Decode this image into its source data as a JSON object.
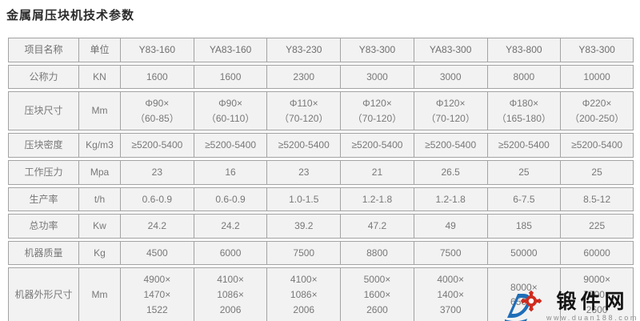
{
  "page": {
    "title": "金属屑压块机技术参数"
  },
  "table": {
    "headers": [
      "项目名称",
      "单位",
      "Y83-160",
      "YA83-160",
      "Y83-230",
      "Y83-300",
      "YA83-300",
      "Y83-800",
      "Y83-300"
    ],
    "rows": [
      {
        "label": "公称力",
        "unit": "KN",
        "values": [
          "1600",
          "1600",
          "2300",
          "3000",
          "3000",
          "8000",
          "10000"
        ]
      },
      {
        "label": "压块尺寸",
        "unit": "Mm",
        "values": [
          "Φ90×\n（60-85）",
          "Φ90×\n（60-110）",
          "Φ110×\n（70-120）",
          "Φ120×\n（70-120）",
          "Φ120×\n（70-120）",
          "Φ180×\n（165-180）",
          "Φ220×\n（200-250）"
        ]
      },
      {
        "label": "压块密度",
        "unit": "Kg/m3",
        "values": [
          "≥5200-5400",
          "≥5200-5400",
          "≥5200-5400",
          "≥5200-5400",
          "≥5200-5400",
          "≥5200-5400",
          "≥5200-5400"
        ]
      },
      {
        "label": "工作压力",
        "unit": "Mpa",
        "values": [
          "23",
          "16",
          "23",
          "21",
          "26.5",
          "25",
          "25"
        ]
      },
      {
        "label": "生产率",
        "unit": "t/h",
        "values": [
          "0.6-0.9",
          "0.6-0.9",
          "1.0-1.5",
          "1.2-1.8",
          "1.2-1.8",
          "6-7.5",
          "8.5-12"
        ]
      },
      {
        "label": "总功率",
        "unit": "Kw",
        "values": [
          "24.2",
          "24.2",
          "39.2",
          "47.2",
          "49",
          "185",
          "225"
        ]
      },
      {
        "label": "机器质量",
        "unit": "Kg",
        "values": [
          "4500",
          "6000",
          "7500",
          "8800",
          "7500",
          "50000",
          "60000"
        ]
      },
      {
        "label": "机器外形尺寸",
        "unit": "Mm",
        "values": [
          "4900×\n1470×\n1522",
          "4100×\n1086×\n2006",
          "4100×\n1086×\n2006",
          "5000×\n1600×\n2600",
          "4000×\n1400×\n3700",
          "8000×\n6500×",
          "9000×\n7500×\n2600"
        ]
      }
    ]
  },
  "watermark": {
    "name": "锻件网",
    "url": "www.duan188.com",
    "logo_blue": "#1e6eb8",
    "logo_red": "#cf2c1f"
  }
}
